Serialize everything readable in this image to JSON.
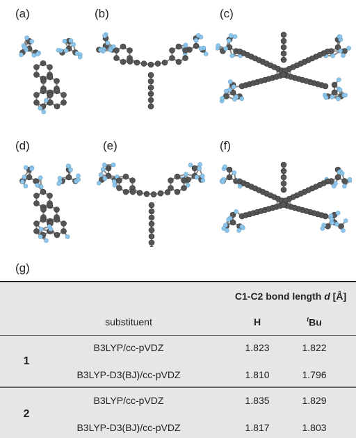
{
  "panels": [
    {
      "label": "(a)"
    },
    {
      "label": "(b)"
    },
    {
      "label": "(c)"
    },
    {
      "label": "(d)"
    },
    {
      "label": "(e)"
    },
    {
      "label": "(f)"
    }
  ],
  "table": {
    "label": "(g)",
    "header": {
      "title": "C1-C2 bond length",
      "symbol": "d",
      "unit": "[Å]",
      "substituent": "substituent",
      "col_h": "H",
      "col_tbu_sup": "t",
      "col_tbu": "Bu"
    },
    "groups": [
      {
        "id": "1",
        "rows": [
          [
            "B3LYP/cc-pVDZ",
            "1.823",
            "1.822"
          ],
          [
            "B3LYP-D3(BJ)/cc-pVDZ",
            "1.810",
            "1.796"
          ]
        ]
      },
      {
        "id": "2",
        "rows": [
          [
            "B3LYP/cc-pVDZ",
            "1.835",
            "1.829"
          ],
          [
            "B3LYP-D3(BJ)/cc-pVDZ",
            "1.817",
            "1.803"
          ]
        ]
      }
    ]
  }
}
